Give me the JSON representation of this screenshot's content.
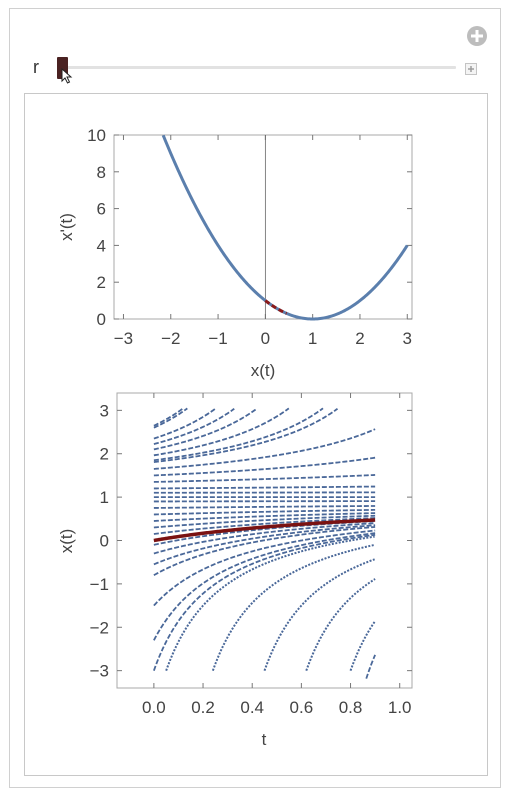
{
  "manipulator": {
    "control_label": "r",
    "slider_fraction": 0.0
  },
  "chart_data": [
    {
      "type": "line",
      "title": "",
      "xlabel": "x(t)",
      "ylabel": "x'(t)",
      "xlim": [
        -3,
        3
      ],
      "ylim": [
        0,
        10
      ],
      "xticks": [
        -3,
        -2,
        -1,
        0,
        1,
        2,
        3
      ],
      "yticks": [
        0,
        2,
        4,
        6,
        8,
        10
      ],
      "xtick_labels": [
        "−3",
        "−2",
        "−1",
        "0",
        "1",
        "2",
        "3"
      ],
      "ytick_labels": [
        "0",
        "2",
        "4",
        "6",
        "8",
        "10"
      ],
      "series": [
        {
          "function": "(x - 1)^2",
          "x": [
            -2.16,
            -1.5,
            -1,
            -0.5,
            0,
            0.5,
            1,
            1.5,
            2,
            2.5,
            3
          ],
          "y": [
            10,
            6.25,
            4,
            2.25,
            1,
            0.25,
            0,
            0.25,
            1,
            2.25,
            4
          ],
          "color": "#5b7fad"
        }
      ],
      "highlight": {
        "x_range": [
          0,
          0.45
        ],
        "color": "#8b1a1a"
      },
      "vertical_axis_line_at": 0
    },
    {
      "type": "line",
      "title": "",
      "xlabel": "t",
      "ylabel": "x(t)",
      "xlim": [
        -0.15,
        1.05
      ],
      "ylim": [
        -3.4,
        3.4
      ],
      "xticks": [
        0,
        0.2,
        0.4,
        0.6,
        0.8,
        1.0
      ],
      "yticks": [
        -3,
        -2,
        -1,
        0,
        1,
        2,
        3
      ],
      "xtick_labels": [
        "0.0",
        "0.2",
        "0.4",
        "0.6",
        "0.8",
        "1.0"
      ],
      "ytick_labels": [
        "−3",
        "−2",
        "−1",
        "0",
        "1",
        "2",
        "3"
      ],
      "t_range": [
        0,
        0.9
      ],
      "initial_values": [
        -3,
        -2.3,
        -1.5,
        -0.8,
        -0.55,
        -0.3,
        -0.1,
        0,
        0.15,
        0.3,
        0.45,
        0.6,
        0.75,
        0.9,
        1,
        1.1,
        1.2,
        1.35,
        1.5,
        1.65,
        1.85,
        2.1,
        2.35,
        2.6
      ],
      "highlight": {
        "initial_value": 0,
        "color": "#8b1a1a"
      },
      "field_color": "#4a6899"
    }
  ]
}
